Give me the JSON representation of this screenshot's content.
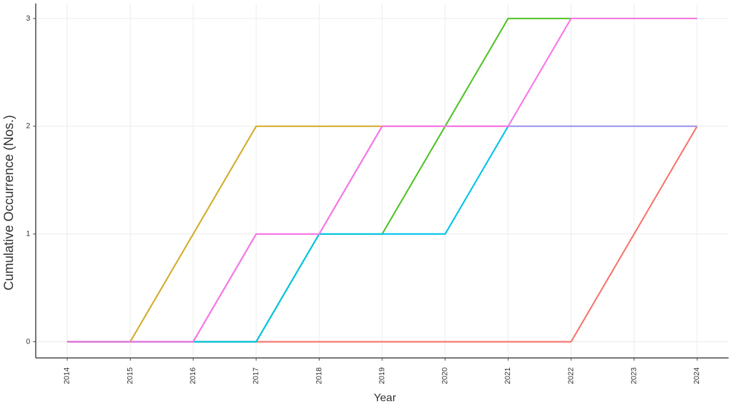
{
  "chart_data": {
    "type": "line",
    "x_label": "Year",
    "y_label": "Cumulative Occurrence (Nos.)",
    "x": [
      2014,
      2015,
      2016,
      2017,
      2018,
      2019,
      2020,
      2021,
      2022,
      2023,
      2024
    ],
    "series": [
      {
        "color": "#f8766d",
        "values": [
          0,
          0,
          0,
          0,
          0,
          0,
          0,
          0,
          0,
          1,
          2
        ]
      },
      {
        "color": "#d4ac2c",
        "values": [
          0,
          0,
          1,
          2,
          2,
          2,
          2,
          2,
          2,
          2,
          2
        ]
      },
      {
        "color": "#53c32a",
        "values": [
          0,
          0,
          0,
          0,
          1,
          1,
          2,
          3,
          3,
          3,
          3
        ]
      },
      {
        "color": "#00c4e8",
        "values": [
          0,
          0,
          0,
          0,
          1,
          1,
          1,
          2,
          2,
          2,
          2
        ]
      },
      {
        "color": "#b49af5",
        "values": [
          0,
          0,
          0,
          1,
          1,
          2,
          2,
          2,
          2,
          2,
          2
        ]
      },
      {
        "color": "#f877e6",
        "values": [
          0,
          0,
          0,
          1,
          1,
          2,
          2,
          2,
          3,
          3,
          3
        ]
      }
    ],
    "xlim": [
      2013.5,
      2024.5
    ],
    "xticks": [
      2014,
      2015,
      2016,
      2017,
      2018,
      2019,
      2020,
      2021,
      2022,
      2023,
      2024
    ],
    "ylim": [
      -0.15,
      3.14
    ],
    "yticks": [
      0,
      1,
      2,
      3
    ],
    "grid": true
  }
}
